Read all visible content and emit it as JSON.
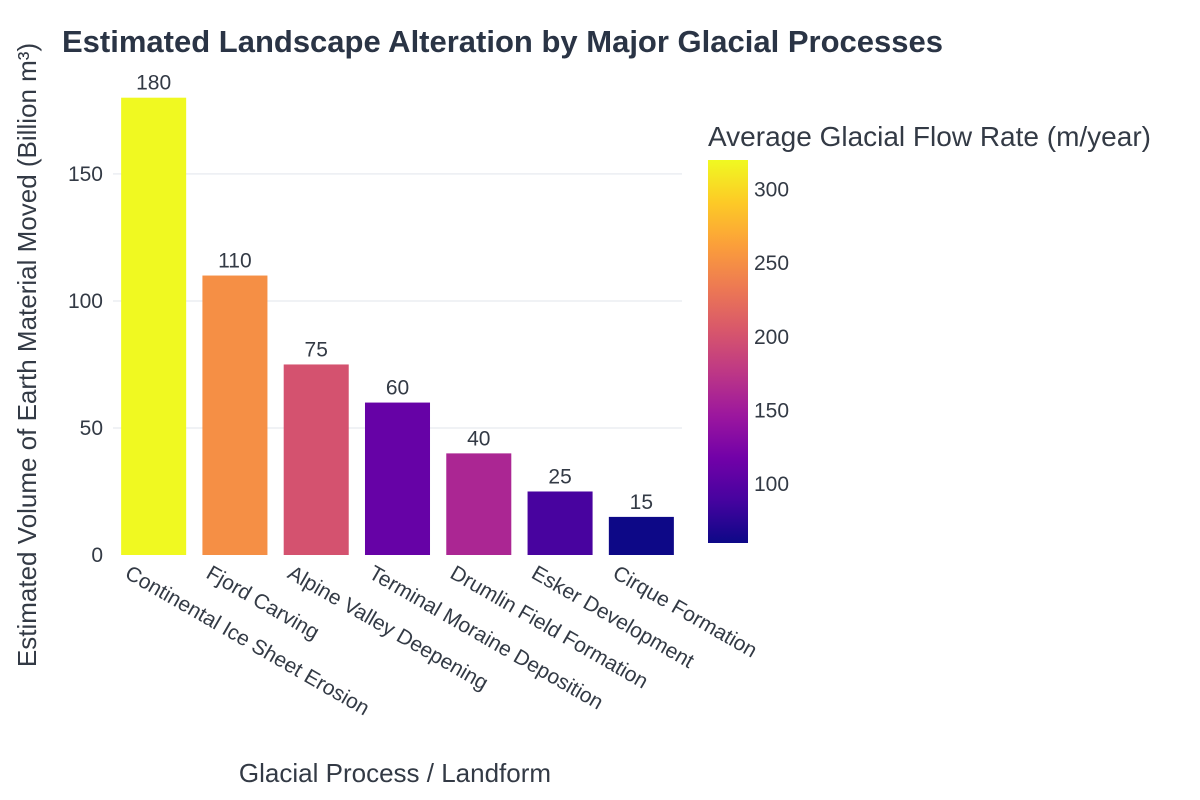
{
  "chart_data": {
    "type": "bar",
    "title": "Estimated Landscape Alteration by Major Glacial Processes",
    "xlabel": "Glacial Process / Landform",
    "ylabel": "Estimated Volume of Earth Material Moved (Billion m³)",
    "categories": [
      "Continental Ice Sheet Erosion",
      "Fjord Carving",
      "Alpine Valley Deepening",
      "Terminal Moraine Deposition",
      "Drumlin Field Formation",
      "Esker Development",
      "Cirque Formation"
    ],
    "values": [
      180,
      110,
      75,
      60,
      40,
      25,
      15
    ],
    "color_values": [
      320,
      250,
      200,
      110,
      160,
      90,
      60
    ],
    "ylim": [
      0,
      185
    ],
    "yticks": [
      0,
      50,
      100,
      150
    ],
    "grid": true,
    "colorbar": {
      "title": "Average Glacial Flow Rate (m/year)",
      "range": [
        60,
        320
      ],
      "ticks": [
        100,
        150,
        200,
        250,
        300
      ],
      "colorscale": [
        "#0d0887",
        "#46039f",
        "#7201a8",
        "#9c179e",
        "#bd3786",
        "#d8576b",
        "#ed7953",
        "#fb9f3a",
        "#fdca26",
        "#f0f921"
      ]
    }
  }
}
